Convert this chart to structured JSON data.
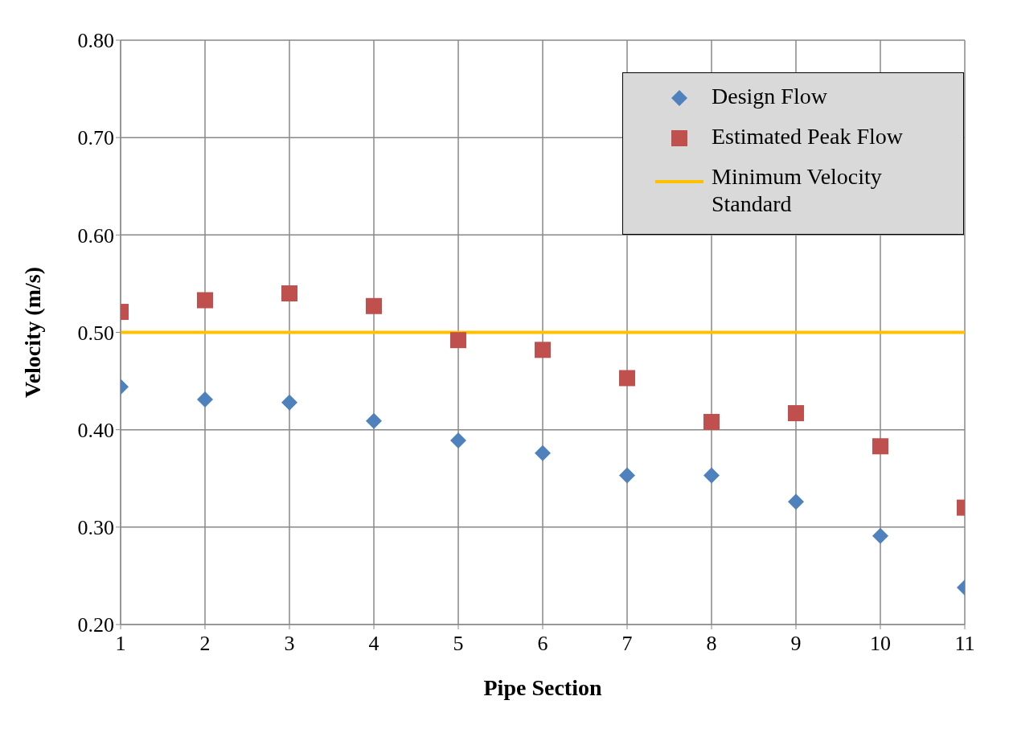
{
  "chart_data": {
    "type": "scatter",
    "xlabel": "Pipe Section",
    "ylabel": "Velocity (m/s)",
    "x": [
      1,
      2,
      3,
      4,
      5,
      6,
      7,
      8,
      9,
      10,
      11
    ],
    "series": [
      {
        "name": "Design Flow",
        "color": "#4f81bd",
        "marker": "diamond",
        "values": [
          0.444,
          0.431,
          0.428,
          0.409,
          0.389,
          0.376,
          0.353,
          0.353,
          0.326,
          0.291,
          0.238
        ]
      },
      {
        "name": "Estimated Peak Flow",
        "color": "#c0504d",
        "marker": "square",
        "values": [
          0.521,
          0.533,
          0.54,
          0.527,
          0.492,
          0.482,
          0.453,
          0.408,
          0.417,
          0.383,
          0.32
        ]
      },
      {
        "name": "Minimum Velocity Standard",
        "type": "line",
        "color": "#ffc000",
        "x": [
          1,
          11
        ],
        "values": [
          0.5,
          0.5
        ]
      }
    ],
    "xlim": [
      1,
      11
    ],
    "xticks": [
      1,
      2,
      3,
      4,
      5,
      6,
      7,
      8,
      9,
      10,
      11
    ],
    "ylim": [
      0.2,
      0.8
    ],
    "yticks": [
      {
        "value": 0.2,
        "label": "0.20"
      },
      {
        "value": 0.3,
        "label": "0.30"
      },
      {
        "value": 0.4,
        "label": "0.40"
      },
      {
        "value": 0.5,
        "label": "0.50"
      },
      {
        "value": 0.6,
        "label": "0.60"
      },
      {
        "value": 0.7,
        "label": "0.70"
      },
      {
        "value": 0.8,
        "label": "0.80"
      }
    ],
    "grid": true,
    "legend": "top right"
  }
}
